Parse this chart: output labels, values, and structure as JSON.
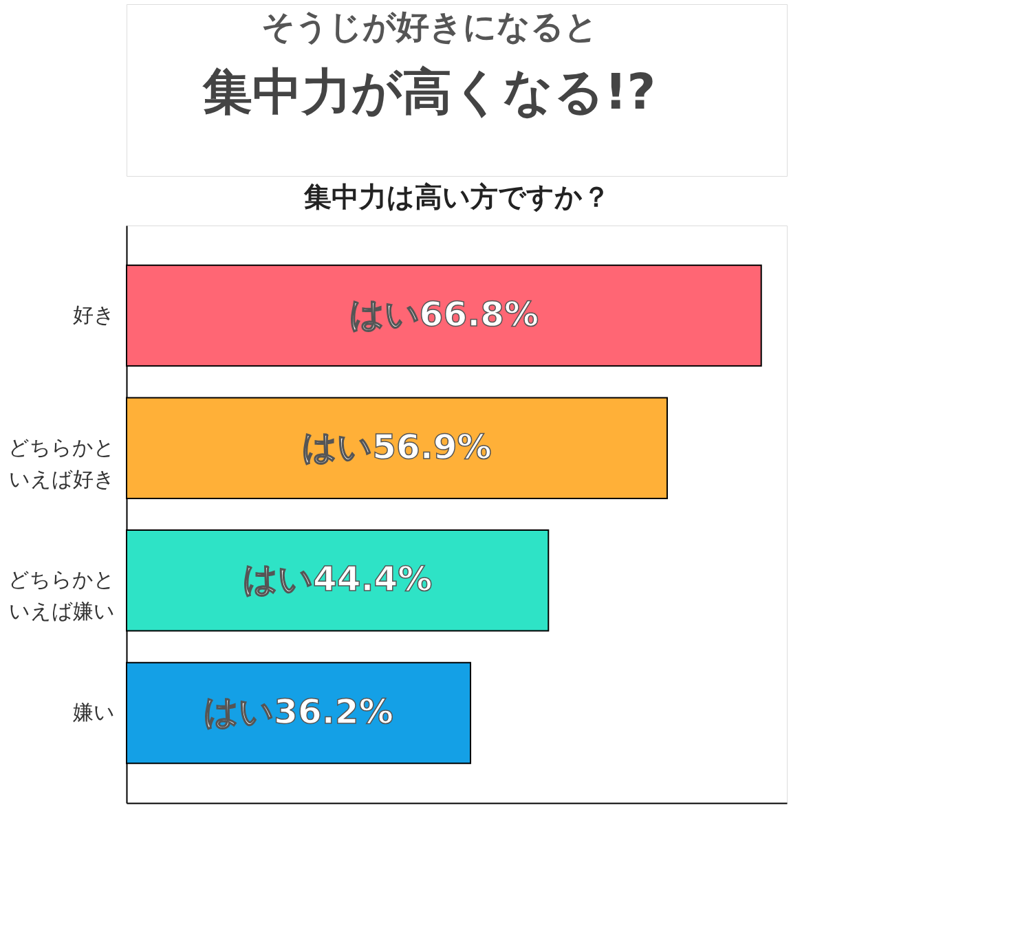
{
  "chart_data": {
    "type": "bar",
    "orientation": "horizontal",
    "title": "集中力が高くなる!?",
    "subtitle": "そうじが好きになると",
    "annotations": [
      "集中力は高い方ですか？"
    ],
    "categories": [
      "好き",
      "どちらかといえば好き",
      "どちらかといえば嫌い",
      "嫌い"
    ],
    "values": [
      66.8,
      56.9,
      44.4,
      36.2
    ],
    "value_labels": [
      "はい66.8%",
      "はい56.9%",
      "はい44.4%",
      "はい36.2%"
    ],
    "colors": [
      "#ff6674",
      "#ffb038",
      "#2ee3c6",
      "#14a0e6"
    ],
    "xlim": [
      0,
      69.5
    ],
    "tick_labels": "y"
  }
}
